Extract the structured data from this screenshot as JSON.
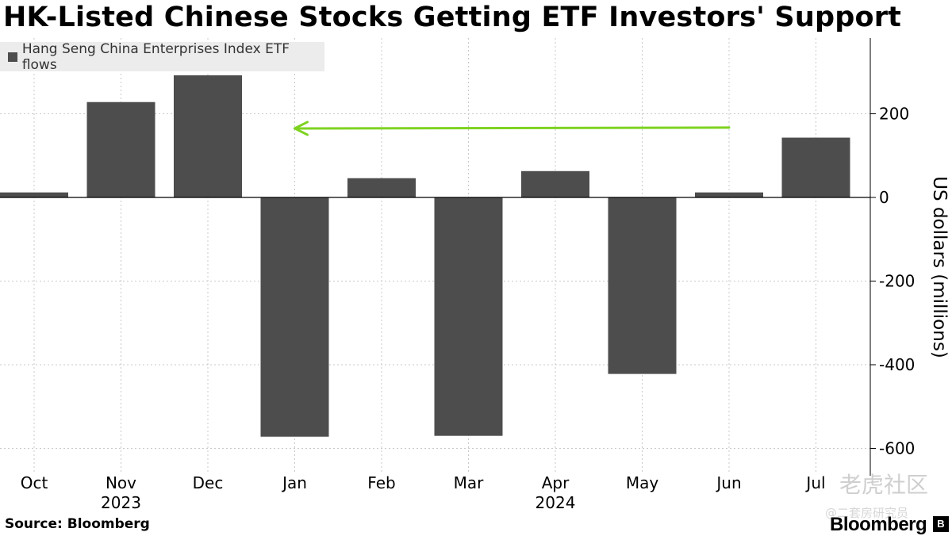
{
  "chart_data": {
    "type": "bar",
    "title": "HK-Listed Chinese Stocks Getting ETF Investors' Support",
    "ylabel": "US dollars (millions)",
    "categories": [
      "Oct",
      "Nov",
      "Dec",
      "Jan",
      "Feb",
      "Mar",
      "Apr",
      "May",
      "Jun",
      "Jul"
    ],
    "year_labels": [
      {
        "category": "Nov",
        "label": "2023"
      },
      {
        "category": "Apr",
        "label": "2024"
      }
    ],
    "series": [
      {
        "name": "Hang Seng China Enterprises Index ETF flows",
        "values": [
          12,
          228,
          292,
          -572,
          46,
          -570,
          63,
          -422,
          12,
          143
        ],
        "color": "#4d4d4d"
      }
    ],
    "ylim": [
      -620,
      370
    ],
    "yticks": [
      {
        "value": 200,
        "label": "200"
      },
      {
        "value": 0,
        "label": "0"
      },
      {
        "value": -200,
        "label": "-200"
      },
      {
        "value": -400,
        "label": "-400"
      },
      {
        "value": -600,
        "label": "-600"
      }
    ],
    "axis_position": "right",
    "grid": true,
    "legend_position": "top-left",
    "annotation": {
      "type": "arrow",
      "from": {
        "category": "Jun",
        "value": 167
      },
      "to": {
        "category": "Jan",
        "value": 165
      },
      "color": "#7ed321"
    }
  },
  "footer": {
    "source": "Source: Bloomberg",
    "brand": "Bloomberg",
    "brand_mark": "B",
    "watermark": "老虎社区",
    "watermark_sub": "@二套房研究员"
  }
}
